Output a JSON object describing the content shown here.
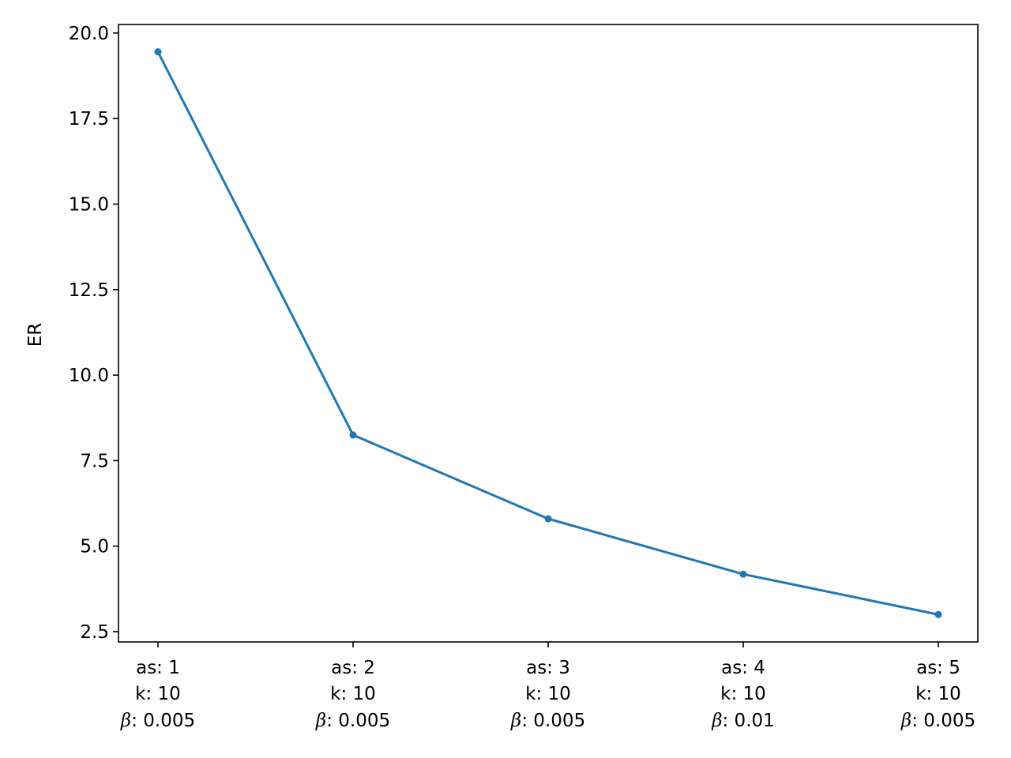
{
  "chart_data": {
    "type": "line",
    "title": "",
    "xlabel": "",
    "ylabel": "ER",
    "ylim": [
      2.2,
      20.25
    ],
    "y_ticks": [
      2.5,
      5.0,
      7.5,
      10.0,
      12.5,
      15.0,
      17.5,
      20.0
    ],
    "y_tick_labels": [
      "2.5",
      "5.0",
      "7.5",
      "10.0",
      "12.5",
      "15.0",
      "17.5",
      "20.0"
    ],
    "grid": false,
    "legend": "none",
    "categories": [
      {
        "as": "as: 1",
        "k": "k: 10",
        "beta_symbol": "β",
        "beta_value": ": 0.005"
      },
      {
        "as": "as: 2",
        "k": "k: 10",
        "beta_symbol": "β",
        "beta_value": ": 0.005"
      },
      {
        "as": "as: 3",
        "k": "k: 10",
        "beta_symbol": "β",
        "beta_value": ": 0.005"
      },
      {
        "as": "as: 4",
        "k": "k: 10",
        "beta_symbol": "β",
        "beta_value": ": 0.01"
      },
      {
        "as": "as: 5",
        "k": "k: 10",
        "beta_symbol": "β",
        "beta_value": ": 0.005"
      }
    ],
    "series": [
      {
        "values": [
          19.45,
          8.25,
          5.8,
          4.18,
          3.0
        ],
        "color": "#1f77b4",
        "marker": "circle"
      }
    ]
  }
}
